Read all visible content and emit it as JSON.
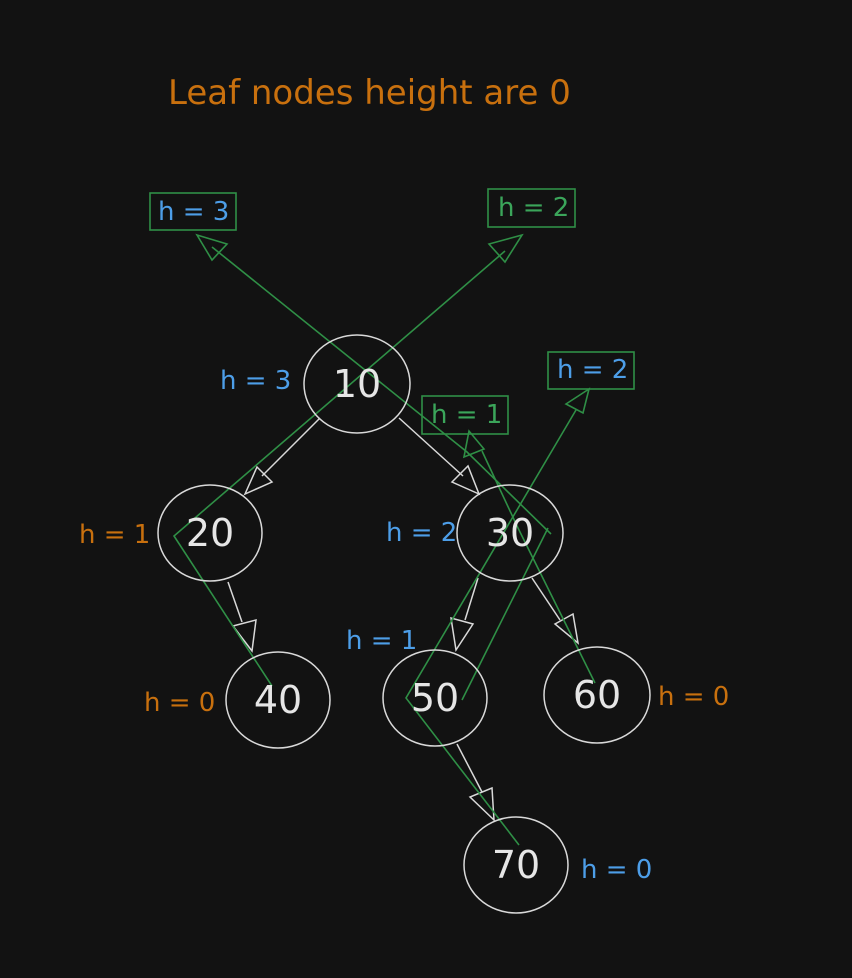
{
  "title": "Leaf nodes height are 0",
  "colors": {
    "background": "#121212",
    "title": "#c8700e",
    "orange": "#c8700e",
    "blue": "#4d9ee8",
    "green": "#3ba55a",
    "node": "#d9d9d9"
  },
  "nodes": [
    {
      "id": "n10",
      "value": "10"
    },
    {
      "id": "n20",
      "value": "20"
    },
    {
      "id": "n30",
      "value": "30"
    },
    {
      "id": "n40",
      "value": "40"
    },
    {
      "id": "n50",
      "value": "50"
    },
    {
      "id": "n60",
      "value": "60"
    },
    {
      "id": "n70",
      "value": "70"
    }
  ],
  "edges": [
    {
      "from": "n10",
      "to": "n20"
    },
    {
      "from": "n10",
      "to": "n30"
    },
    {
      "from": "n20",
      "to": "n40"
    },
    {
      "from": "n30",
      "to": "n50"
    },
    {
      "from": "n30",
      "to": "n60"
    },
    {
      "from": "n50",
      "to": "n70"
    }
  ],
  "height_labels": [
    {
      "id": "h10",
      "text": "h = 3",
      "color": "blue"
    },
    {
      "id": "h20",
      "text": "h = 1",
      "color": "orange"
    },
    {
      "id": "h30",
      "text": "h = 2",
      "color": "blue"
    },
    {
      "id": "h40",
      "text": "h = 0",
      "color": "orange"
    },
    {
      "id": "h50",
      "text": "h = 1",
      "color": "blue"
    },
    {
      "id": "h60",
      "text": "h = 0",
      "color": "orange"
    },
    {
      "id": "h70",
      "text": "h = 0",
      "color": "blue"
    }
  ],
  "boxed_labels": [
    {
      "id": "b-left",
      "text": "h = 3",
      "color": "blue"
    },
    {
      "id": "b-right",
      "text": "h = 2",
      "color": "green"
    },
    {
      "id": "b-mid",
      "text": "h = 1",
      "color": "green"
    },
    {
      "id": "b-30",
      "text": "h = 2",
      "color": "blue"
    }
  ]
}
